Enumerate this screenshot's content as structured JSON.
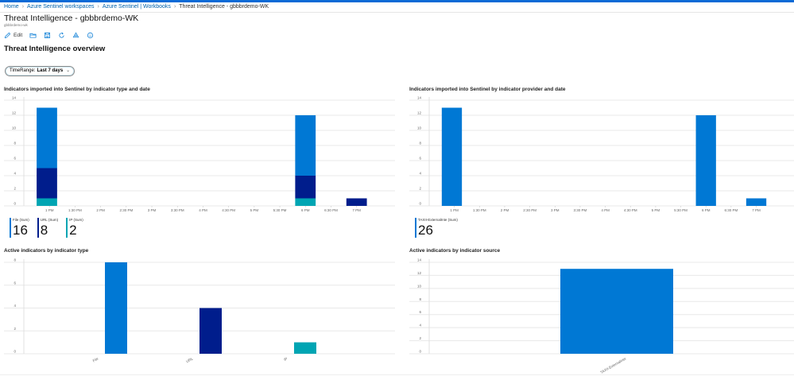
{
  "breadcrumb": {
    "items": [
      "Home",
      "Azure Sentinel workspaces",
      "Azure Sentinel | Workbooks"
    ],
    "current": "Threat Intelligence - gbbbrdemo-WK"
  },
  "header": {
    "title": "Threat Intelligence - gbbbrdemo-WK",
    "subtitle": "gbbbrdemo-wk"
  },
  "toolbar": {
    "edit_label": "Edit",
    "icons": [
      "edit-icon",
      "open-folder-icon",
      "save-icon",
      "refresh-icon",
      "share-icon",
      "feedback-smiley-icon"
    ]
  },
  "section": {
    "title": "Threat Intelligence overview"
  },
  "parameters": {
    "time_range_label": "TimeRange:",
    "time_range_value": "Last 7 days"
  },
  "colors": {
    "file": "#0078d4",
    "url": "#001d8c",
    "ip": "#00a5b3",
    "accent": "#0a6ad6"
  },
  "tiles_type": [
    {
      "label": "File (Sum)",
      "value": "16",
      "color": "#0078d4"
    },
    {
      "label": "URL (Sum)",
      "value": "8",
      "color": "#001d8c"
    },
    {
      "label": "IP (Sum)",
      "value": "2",
      "color": "#00a5b3"
    }
  ],
  "tiles_provider": [
    {
      "label": "TAXII-ExternalInte (Sum)",
      "value": "26",
      "color": "#0078d4"
    }
  ],
  "chart_data": [
    {
      "id": "by-type-date",
      "type": "bar",
      "stacked": true,
      "title": "Indicators imported into Sentinel by indicator type and date",
      "x_ticks": [
        "1 PM",
        "1:30 PM",
        "2 PM",
        "2:30 PM",
        "3 PM",
        "3:30 PM",
        "4 PM",
        "4:30 PM",
        "5 PM",
        "5:30 PM",
        "6 PM",
        "6:30 PM",
        "7 PM"
      ],
      "x_range_hours": [
        12.5,
        19.75
      ],
      "bar_width_hours": 0.4,
      "ylim": [
        0,
        14
      ],
      "y_ticks": [
        0,
        2,
        4,
        6,
        8,
        10,
        12,
        14
      ],
      "categories_hours": [
        12.95,
        18.0,
        19.0
      ],
      "series": [
        {
          "name": "IP",
          "color": "#00a5b3",
          "values": [
            1,
            1,
            0
          ]
        },
        {
          "name": "URL",
          "color": "#001d8c",
          "values": [
            4,
            3,
            1
          ]
        },
        {
          "name": "File",
          "color": "#0078d4",
          "values": [
            8,
            8,
            0
          ]
        }
      ],
      "grid": true
    },
    {
      "id": "by-provider-date",
      "type": "bar",
      "stacked": true,
      "title": "Indicators imported into Sentinel by indicator provider and date",
      "x_ticks": [
        "1 PM",
        "1:30 PM",
        "2 PM",
        "2:30 PM",
        "3 PM",
        "3:30 PM",
        "4 PM",
        "4:30 PM",
        "5 PM",
        "5:30 PM",
        "6 PM",
        "6:30 PM",
        "7 PM"
      ],
      "x_range_hours": [
        12.5,
        19.75
      ],
      "bar_width_hours": 0.4,
      "ylim": [
        0,
        14
      ],
      "y_ticks": [
        0,
        2,
        4,
        6,
        8,
        10,
        12,
        14
      ],
      "categories_hours": [
        12.95,
        18.0,
        19.0
      ],
      "series": [
        {
          "name": "TAXII-ExternalInte",
          "color": "#0078d4",
          "values": [
            13,
            12,
            1
          ]
        }
      ],
      "grid": true
    },
    {
      "id": "active-by-type",
      "type": "bar",
      "title": "Active indicators by indicator type",
      "categories": [
        "File",
        "URL",
        "IP"
      ],
      "values": [
        8,
        4,
        1
      ],
      "colors": [
        "#0078d4",
        "#001d8c",
        "#00a5b3"
      ],
      "ylim": [
        0,
        8
      ],
      "y_ticks": [
        0,
        2,
        4,
        6,
        8
      ],
      "grid": true
    },
    {
      "id": "active-by-source",
      "type": "bar",
      "title": "Active indicators by indicator source",
      "categories": [
        "TAXII-ExternalInte"
      ],
      "values": [
        13
      ],
      "colors": [
        "#0078d4"
      ],
      "ylim": [
        0,
        14
      ],
      "y_ticks": [
        0,
        2,
        4,
        6,
        8,
        10,
        12,
        14
      ],
      "grid": true
    }
  ]
}
